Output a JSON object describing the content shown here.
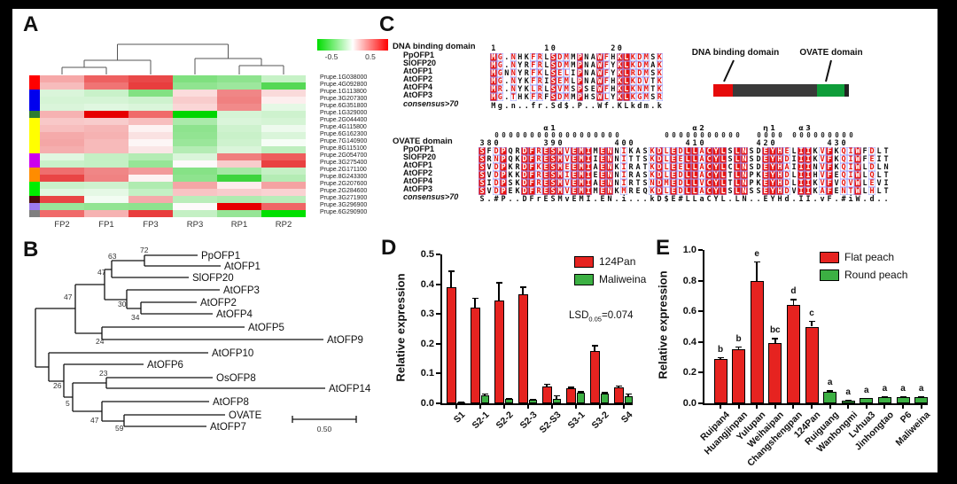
{
  "panels": {
    "a": "A",
    "b": "B",
    "c": "C",
    "d": "D",
    "e": "E"
  },
  "chart_data": [
    {
      "id": "A",
      "type": "heatmap",
      "columns": [
        "FP2",
        "FP1",
        "FP3",
        "RP3",
        "RP1",
        "RP2"
      ],
      "scale": {
        "min_label": "-0.5",
        "max_label": "0.5",
        "colors": [
          "#00dd00",
          "#ffffff",
          "#ff0000"
        ]
      },
      "rows": [
        {
          "gene": "Prupe.1G038000",
          "group_color": "#ff0000",
          "cells": [
            "#f6a8a8",
            "#ee6060",
            "#e94848",
            "#7fe07f",
            "#8ee38e",
            "#c6f2c6"
          ]
        },
        {
          "gene": "Prupe.4G092800",
          "group_color": "#ff0000",
          "cells": [
            "#f7bcbc",
            "#f07474",
            "#e83e3e",
            "#90e490",
            "#9de79d",
            "#55d855"
          ]
        },
        {
          "gene": "Prupe.1G113800",
          "group_color": "#0000ee",
          "cells": [
            "#daf5da",
            "#c9f1c9",
            "#82e182",
            "#fbdcdc",
            "#f08686",
            "#fadada"
          ]
        },
        {
          "gene": "Prupe.3G207300",
          "group_color": "#0000ee",
          "cells": [
            "#d5f4d5",
            "#d5f4d5",
            "#cef2ce",
            "#f8cccc",
            "#f08080",
            "#fdeeee"
          ]
        },
        {
          "gene": "Prupe.6G351800",
          "group_color": "#0000ee",
          "cells": [
            "#daf5da",
            "#e0f7e0",
            "#daf5da",
            "#fad6d6",
            "#f18a8a",
            "#e5f8e5"
          ]
        },
        {
          "gene": "Prupe.1G329000",
          "group_color": "#2e7d32",
          "cells": [
            "#f6b2b2",
            "#e60000",
            "#f06a6a",
            "#00d600",
            "#d5f4d5",
            "#cef2ce"
          ]
        },
        {
          "gene": "Prupe.2G044400",
          "group_color": "#ffff00",
          "cells": [
            "#f8c8c8",
            "#f8cccc",
            "#f7bebe",
            "#aaeaaa",
            "#daf5da",
            "#d5f4d5"
          ]
        },
        {
          "gene": "Prupe.4G115800",
          "group_color": "#ffff00",
          "cells": [
            "#f7bebe",
            "#f6b6b6",
            "#fdf2f2",
            "#8ee38e",
            "#cef2ce",
            "#edfaed"
          ]
        },
        {
          "gene": "Prupe.6G162300",
          "group_color": "#ffff00",
          "cells": [
            "#f5aaaa",
            "#f6b2b2",
            "#fae2e2",
            "#92e492",
            "#c9f1c9",
            "#daf5da"
          ]
        },
        {
          "gene": "Prupe.7G140900",
          "group_color": "#ffff00",
          "cells": [
            "#f4a6a6",
            "#f7baba",
            "#fdf6f6",
            "#9ae69a",
            "#cef2ce",
            "#f6fdf6"
          ]
        },
        {
          "gene": "Prupe.8G115100",
          "group_color": "#ffff00",
          "cells": [
            "#f5aeae",
            "#f7baba",
            "#fae6e6",
            "#b4ecb4",
            "#daf5da",
            "#beeebe"
          ]
        },
        {
          "gene": "Prupe.2G054700",
          "group_color": "#cc00ee",
          "cells": [
            "#e0f7e0",
            "#c4f0c4",
            "#b4ecb4",
            "#daf5da",
            "#f07e7e",
            "#ee5c5c"
          ]
        },
        {
          "gene": "Prupe.3G275400",
          "group_color": "#cc00ee",
          "cells": [
            "#c9f1c9",
            "#c4f0c4",
            "#96e596",
            "#fdfafa",
            "#f8cccc",
            "#e94141"
          ]
        },
        {
          "gene": "Prupe.2G171100",
          "group_color": "#ff8c00",
          "cells": [
            "#ef6e6e",
            "#f08686",
            "#f29a9a",
            "#86e286",
            "#a4e8a4",
            "#c4f0c4"
          ]
        },
        {
          "gene": "Prupe.8G243300",
          "group_color": "#ff8c00",
          "cells": [
            "#e94545",
            "#f08282",
            "#fdf2f2",
            "#8ee38e",
            "#3ed43e",
            "#b4ecb4"
          ]
        },
        {
          "gene": "Prupe.2G207600",
          "group_color": "#00ee00",
          "cells": [
            "#c9f1c9",
            "#cef2ce",
            "#b0ebb0",
            "#f5a6a6",
            "#fdecec",
            "#f4a2a2"
          ]
        },
        {
          "gene": "Prupe.2G284600",
          "group_color": "#00ee00",
          "cells": [
            "#e0f7e0",
            "#e5f8e5",
            "#c4f0c4",
            "#f8c4c4",
            "#f8cccc",
            "#fad2d2"
          ]
        },
        {
          "gene": "Prupe.3G271900",
          "group_color": "#4a0d0d",
          "cells": [
            "#e94545",
            "#f2fcf2",
            "#f5aaaa",
            "#baedba",
            "#b0ebb0",
            "#baedba"
          ]
        },
        {
          "gene": "Prupe.3G296900",
          "group_color": "#9d7bef",
          "cells": [
            "#9ae69a",
            "#92e492",
            "#8ee38e",
            "#fdfafa",
            "#e60000",
            "#ef6666"
          ]
        },
        {
          "gene": "Prupe.6G290900",
          "group_color": "#7f7f7f",
          "cells": [
            "#f06a6a",
            "#f6b2b2",
            "#e93d3d",
            "#c4f0c4",
            "#96e596",
            "#00e000"
          ]
        }
      ]
    },
    {
      "id": "D",
      "type": "bar",
      "ylabel": "Relative expression",
      "ylim": [
        0,
        0.5
      ],
      "yticks": [
        "0.0",
        "0.1",
        "0.2",
        "0.3",
        "0.4",
        "0.5"
      ],
      "categories": [
        "S1",
        "S2-1",
        "S2-2",
        "S2-3",
        "S2-S3",
        "S3-1",
        "S3-2",
        "S4"
      ],
      "series": [
        {
          "name": "124Pan",
          "color": "#e62320",
          "values": [
            0.39,
            0.32,
            0.345,
            0.365,
            0.058,
            0.05,
            0.175,
            0.055
          ],
          "errors": [
            0.055,
            0.035,
            0.062,
            0.027,
            0.008,
            0.006,
            0.02,
            0.006
          ]
        },
        {
          "name": "Maliweina",
          "color": "#3cb043",
          "values": [
            0.003,
            0.028,
            0.015,
            0.012,
            0.015,
            0.035,
            0.033,
            0.025
          ],
          "errors": [
            0.002,
            0.006,
            0.003,
            0.003,
            0.012,
            0.006,
            0.005,
            0.008
          ]
        }
      ],
      "annotation": {
        "prefix": "LSD",
        "sub": "0.05",
        "value": "=0.074"
      },
      "legend_position": "top-right"
    },
    {
      "id": "E",
      "type": "bar",
      "ylabel": "Relative expression",
      "ylim": [
        0,
        1.0
      ],
      "yticks": [
        "0.0",
        "0.2",
        "0.4",
        "0.6",
        "0.8",
        "1.0"
      ],
      "categories": [
        "Ruipan4",
        "Huangjinpan",
        "Yulupan",
        "Weihaipan",
        "Changshengpan",
        "124Pan",
        "Ruiguang",
        "Wanhongmi",
        "Lvhua3",
        "Jinhongtao",
        "P6",
        "Maliweina"
      ],
      "values": [
        0.29,
        0.355,
        0.8,
        0.395,
        0.64,
        0.5,
        0.075,
        0.02,
        0.032,
        0.04,
        0.04,
        0.042
      ],
      "errors": [
        0.012,
        0.015,
        0.125,
        0.03,
        0.04,
        0.04,
        0.01,
        0.004,
        0.005,
        0.007,
        0.007,
        0.007
      ],
      "letters": [
        "b",
        "b",
        "e",
        "bc",
        "d",
        "c",
        "a",
        "a",
        "a",
        "a",
        "a",
        "a"
      ],
      "groups": [
        "flat",
        "flat",
        "flat",
        "flat",
        "flat",
        "flat",
        "round",
        "round",
        "round",
        "round",
        "round",
        "round"
      ],
      "legend": [
        {
          "label": "Flat peach",
          "color": "#e62320"
        },
        {
          "label": "Round peach",
          "color": "#3cb043"
        }
      ]
    }
  ],
  "panelB": {
    "taxa": [
      "PpOFP1",
      "AtOFP1",
      "SlOFP20",
      "AtOFP3",
      "AtOFP2",
      "AtOFP4",
      "AtOFP5",
      "AtOFP9",
      "AtOFP10",
      "AtOFP6",
      "OsOFP8",
      "AtOFP14",
      "AtOFP8",
      "OVATE",
      "AtOFP7"
    ],
    "bootstrap": [
      "72",
      "63",
      "47",
      "47",
      "30",
      "34",
      "24",
      "26",
      "23",
      "5",
      "47",
      "59"
    ],
    "scale_label": "0.50"
  },
  "panelC": {
    "dna": {
      "title": "DNA binding domain",
      "ruler": "1       10        20      ",
      "rows": [
        {
          "name": "PpOFP1",
          "seq": "MG.NHKFRLSDMMPNAWFHKLKDMSK"
        },
        {
          "name": "SlOFP20",
          "seq": "MG.NYRFRLSDMMPNAWFYKLKDMAK"
        },
        {
          "name": "AtOFP1",
          "seq": "MGNNYRFKLSELIPNAWFYKLRDMSK"
        },
        {
          "name": "AtOFP2",
          "seq": "MG.NYKFRISEMLPNAWFHKLKDVTK"
        },
        {
          "name": "AtOFP4",
          "seq": "MR.NYKLRLSVMSPSEWFHKLKNMTK"
        },
        {
          "name": "AtOFP3",
          "seq": "MG.THKFRFSDMMPHSWLYKLKGMSR"
        }
      ],
      "consensus_name": "consensus>70",
      "consensus": "Mg.n..fr.Sd$.P..Wf.KLkdm.k"
    },
    "ovate": {
      "title": "OVATE domain",
      "ss_labels": "         α1                   α2        η1   α3           ",
      "ss_coils": "  000000000000000000      00000000000  0000 000000000     ",
      "ruler": "380      390       400       410       420       430      ",
      "rows": [
        {
          "name": "PpOFP1",
          "seq": "SFDPQRDFRESMVEMIMENNIKASKDLEDLLACYLSLNSDEYHELIIKVFKQIWFDLT"
        },
        {
          "name": "SlOFP20",
          "seq": "SRNPQKDFRESMVEMIIENNITTSKDLEELLACYLSLNSDEYHDIIIKVFKQIWFEIT"
        },
        {
          "name": "AtOFP1",
          "seq": "SVDPKRDFKESMEEMIAENKIRATKDLEELLACYLCLNSDEYHAIIINVFKQIWLDLN"
        },
        {
          "name": "AtOFP2",
          "seq": "SVDPKKDFRESMIEMIEENNIRASKDLEDLLACYLTLNPKEYHDLIIHVFEQIWLQLT"
        },
        {
          "name": "AtOFP4",
          "seq": "SIDPSKDFRESMVEMIAENNIRTSNDMEDLLVCYLTLNPKEYHDLIIKVFVQVWLEVI"
        },
        {
          "name": "AtOFP3",
          "seq": "SVDPEKDFRESMVEMIMENKMREQKDLEDLLACYLSLNSSEYHDVIIKAFENTWLHLT"
        }
      ],
      "consensus_name": "consensus>70",
      "consensus": "S.#P..DFrESMvEMI.EN.i...kD$E#LLaCYL.LN..EYHd.II.vF.#iW.d.."
    },
    "diagram": {
      "label_dna": "DNA binding domain",
      "label_ovate": "OVATE domain",
      "colors": {
        "dna": "#e60b0b",
        "body": "#3a3a3a",
        "ovate": "#0f9d3a",
        "tip": "#222222"
      }
    }
  }
}
